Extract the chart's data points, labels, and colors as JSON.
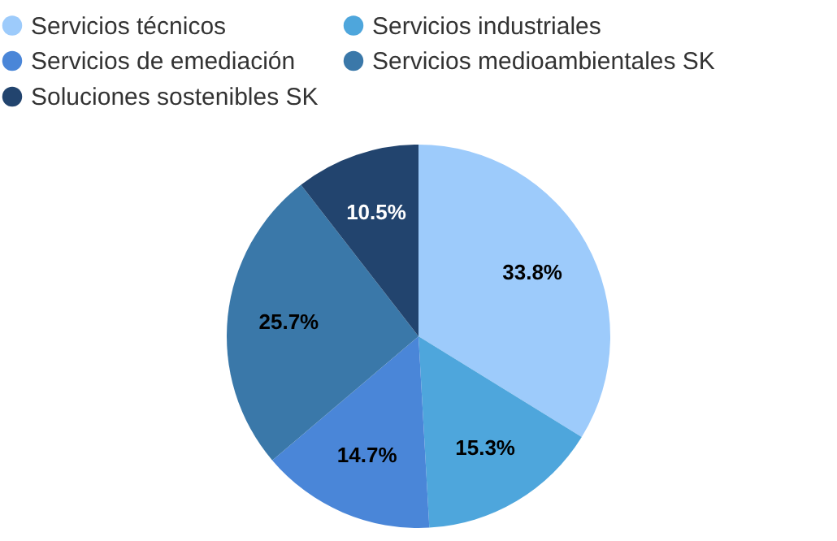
{
  "chart_data": {
    "type": "pie",
    "categories": [
      "Servicios técnicos",
      "Servicios industriales",
      "Servicios de emediación",
      "Servicios medioambientales SK",
      "Soluciones sostenibles SK"
    ],
    "values": [
      33.8,
      15.3,
      14.7,
      25.7,
      10.5
    ],
    "value_labels": [
      "33.8%",
      "15.3%",
      "14.7%",
      "25.7%",
      "10.5%"
    ],
    "colors": [
      "#9dcbfb",
      "#4ea6dc",
      "#4a86d8",
      "#3a78a9",
      "#22446e"
    ],
    "legend": "top"
  }
}
